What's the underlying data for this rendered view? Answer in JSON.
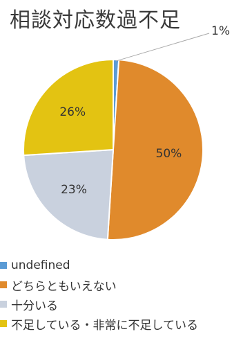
{
  "chart_data": {
    "type": "pie",
    "title": "相談対応数過不足",
    "start_angle_deg": 0,
    "direction": "clockwise",
    "slices": [
      {
        "label": "undefined",
        "value": 1,
        "data_label": "1%",
        "color": "#5b9bd5",
        "label_position": "outside"
      },
      {
        "label": "どちらともいえない",
        "value": 50,
        "data_label": "50%",
        "color": "#e08a2c",
        "label_position": "inside"
      },
      {
        "label": "十分いる",
        "value": 23,
        "data_label": "23%",
        "color": "#c9d1de",
        "label_position": "inside"
      },
      {
        "label": "不足している・非常に不足している",
        "value": 26,
        "data_label": "26%",
        "color": "#e3c312",
        "label_position": "inside"
      }
    ],
    "legend": {
      "position": "bottom",
      "items": [
        {
          "label": "undefined",
          "color": "#5b9bd5"
        },
        {
          "label": "どちらともいえない",
          "color": "#e08a2c"
        },
        {
          "label": "十分いる",
          "color": "#c9d1de"
        },
        {
          "label": "不足している・非常に不足している",
          "color": "#e3c312"
        }
      ]
    }
  }
}
